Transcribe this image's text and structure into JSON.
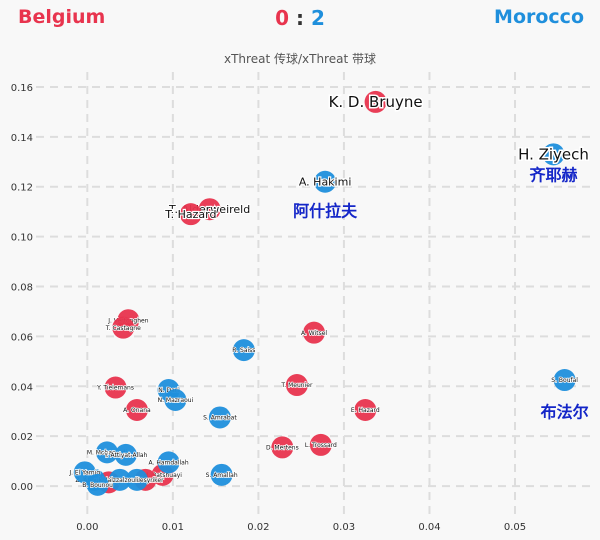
{
  "header": {
    "team_left": "Belgium",
    "team_right": "Morocco",
    "score_left": "0",
    "score_sep": ":",
    "score_right": "2",
    "subtitle": "xThreat 传球/xThreat 带球"
  },
  "colors": {
    "left": "#e8344e",
    "right": "#1f8fdc",
    "annotation": "#1426c8",
    "grid": "#dddddd",
    "background": "#f8f8f8"
  },
  "chart_data": {
    "type": "scatter",
    "xlim": [
      -0.006,
      0.059
    ],
    "ylim": [
      -0.012,
      0.166
    ],
    "x_ticks": [
      "0.00",
      "0.01",
      "0.02",
      "0.03",
      "0.04",
      "0.05"
    ],
    "y_ticks": [
      "0.00",
      "0.02",
      "0.04",
      "0.06",
      "0.08",
      "0.10",
      "0.12",
      "0.14",
      "0.16"
    ],
    "grid": true,
    "series": [
      {
        "name": "Belgium",
        "points": [
          {
            "label": "K. D. Bruyne",
            "x": 0.0337,
            "y": 0.154
          },
          {
            "label": "T. Alderweireld",
            "x": 0.0143,
            "y": 0.111
          },
          {
            "label": "T. Hazard",
            "x": 0.0121,
            "y": 0.109
          },
          {
            "label": "J. Vertonghen",
            "x": 0.0048,
            "y": 0.0665
          },
          {
            "label": "T. Castagne",
            "x": 0.0042,
            "y": 0.0635
          },
          {
            "label": "A. Witsel",
            "x": 0.0265,
            "y": 0.0615
          },
          {
            "label": "Y. Tielemans",
            "x": 0.0033,
            "y": 0.0395
          },
          {
            "label": "T. Meunier",
            "x": 0.0245,
            "y": 0.0405
          },
          {
            "label": "A. Onana",
            "x": 0.0058,
            "y": 0.0305
          },
          {
            "label": "E. Hazard",
            "x": 0.0325,
            "y": 0.0305
          },
          {
            "label": "D. Mertens",
            "x": 0.0228,
            "y": 0.0155
          },
          {
            "label": "L. Trossard",
            "x": 0.0273,
            "y": 0.0165
          },
          {
            "label": "M. Batshuayi",
            "x": 0.0088,
            "y": 0.0045
          },
          {
            "label": "Dendoncker",
            "x": 0.0068,
            "y": 0.0025
          },
          {
            "label": "Meunier",
            "x": 0.0025,
            "y": 0.0015
          }
        ]
      },
      {
        "name": "Morocco",
        "points": [
          {
            "label": "H. Ziyech",
            "x": 0.0545,
            "y": 0.133
          },
          {
            "label": "A. Hakimi",
            "x": 0.0278,
            "y": 0.122
          },
          {
            "label": "R. Saiss",
            "x": 0.0183,
            "y": 0.0545
          },
          {
            "label": "S. Boufal",
            "x": 0.0558,
            "y": 0.0425
          },
          {
            "label": "N. Dari",
            "x": 0.0095,
            "y": 0.0385
          },
          {
            "label": "N. Mazraoui",
            "x": 0.0103,
            "y": 0.0345
          },
          {
            "label": "S. Amrabat",
            "x": 0.0155,
            "y": 0.0275
          },
          {
            "label": "M. Mohamedi",
            "x": 0.0023,
            "y": 0.0135
          },
          {
            "label": "Y. Attiyat-Allah",
            "x": 0.0045,
            "y": 0.0125
          },
          {
            "label": "A. Hamdallah",
            "x": 0.0095,
            "y": 0.0095
          },
          {
            "label": "S. Amallah",
            "x": 0.0157,
            "y": 0.0045
          },
          {
            "label": "Y. En-Nesyri",
            "x": 0.0058,
            "y": 0.0025
          },
          {
            "label": "A. Ezzalzouli",
            "x": 0.0038,
            "y": 0.0025
          },
          {
            "label": "Z. Aboukhlal",
            "x": 0.0008,
            "y": 0.0025
          },
          {
            "label": "J. El Yamiq",
            "x": -0.0003,
            "y": 0.0055
          },
          {
            "label": "B. Bounou",
            "x": 0.0012,
            "y": 0.0005
          }
        ]
      }
    ],
    "annotations": [
      {
        "text": "齐耶赫",
        "x": 0.0545,
        "y": 0.1225
      },
      {
        "text": "阿什拉夫",
        "x": 0.0278,
        "y": 0.108
      },
      {
        "text": "布法尔",
        "x": 0.0558,
        "y": 0.0275
      }
    ]
  }
}
